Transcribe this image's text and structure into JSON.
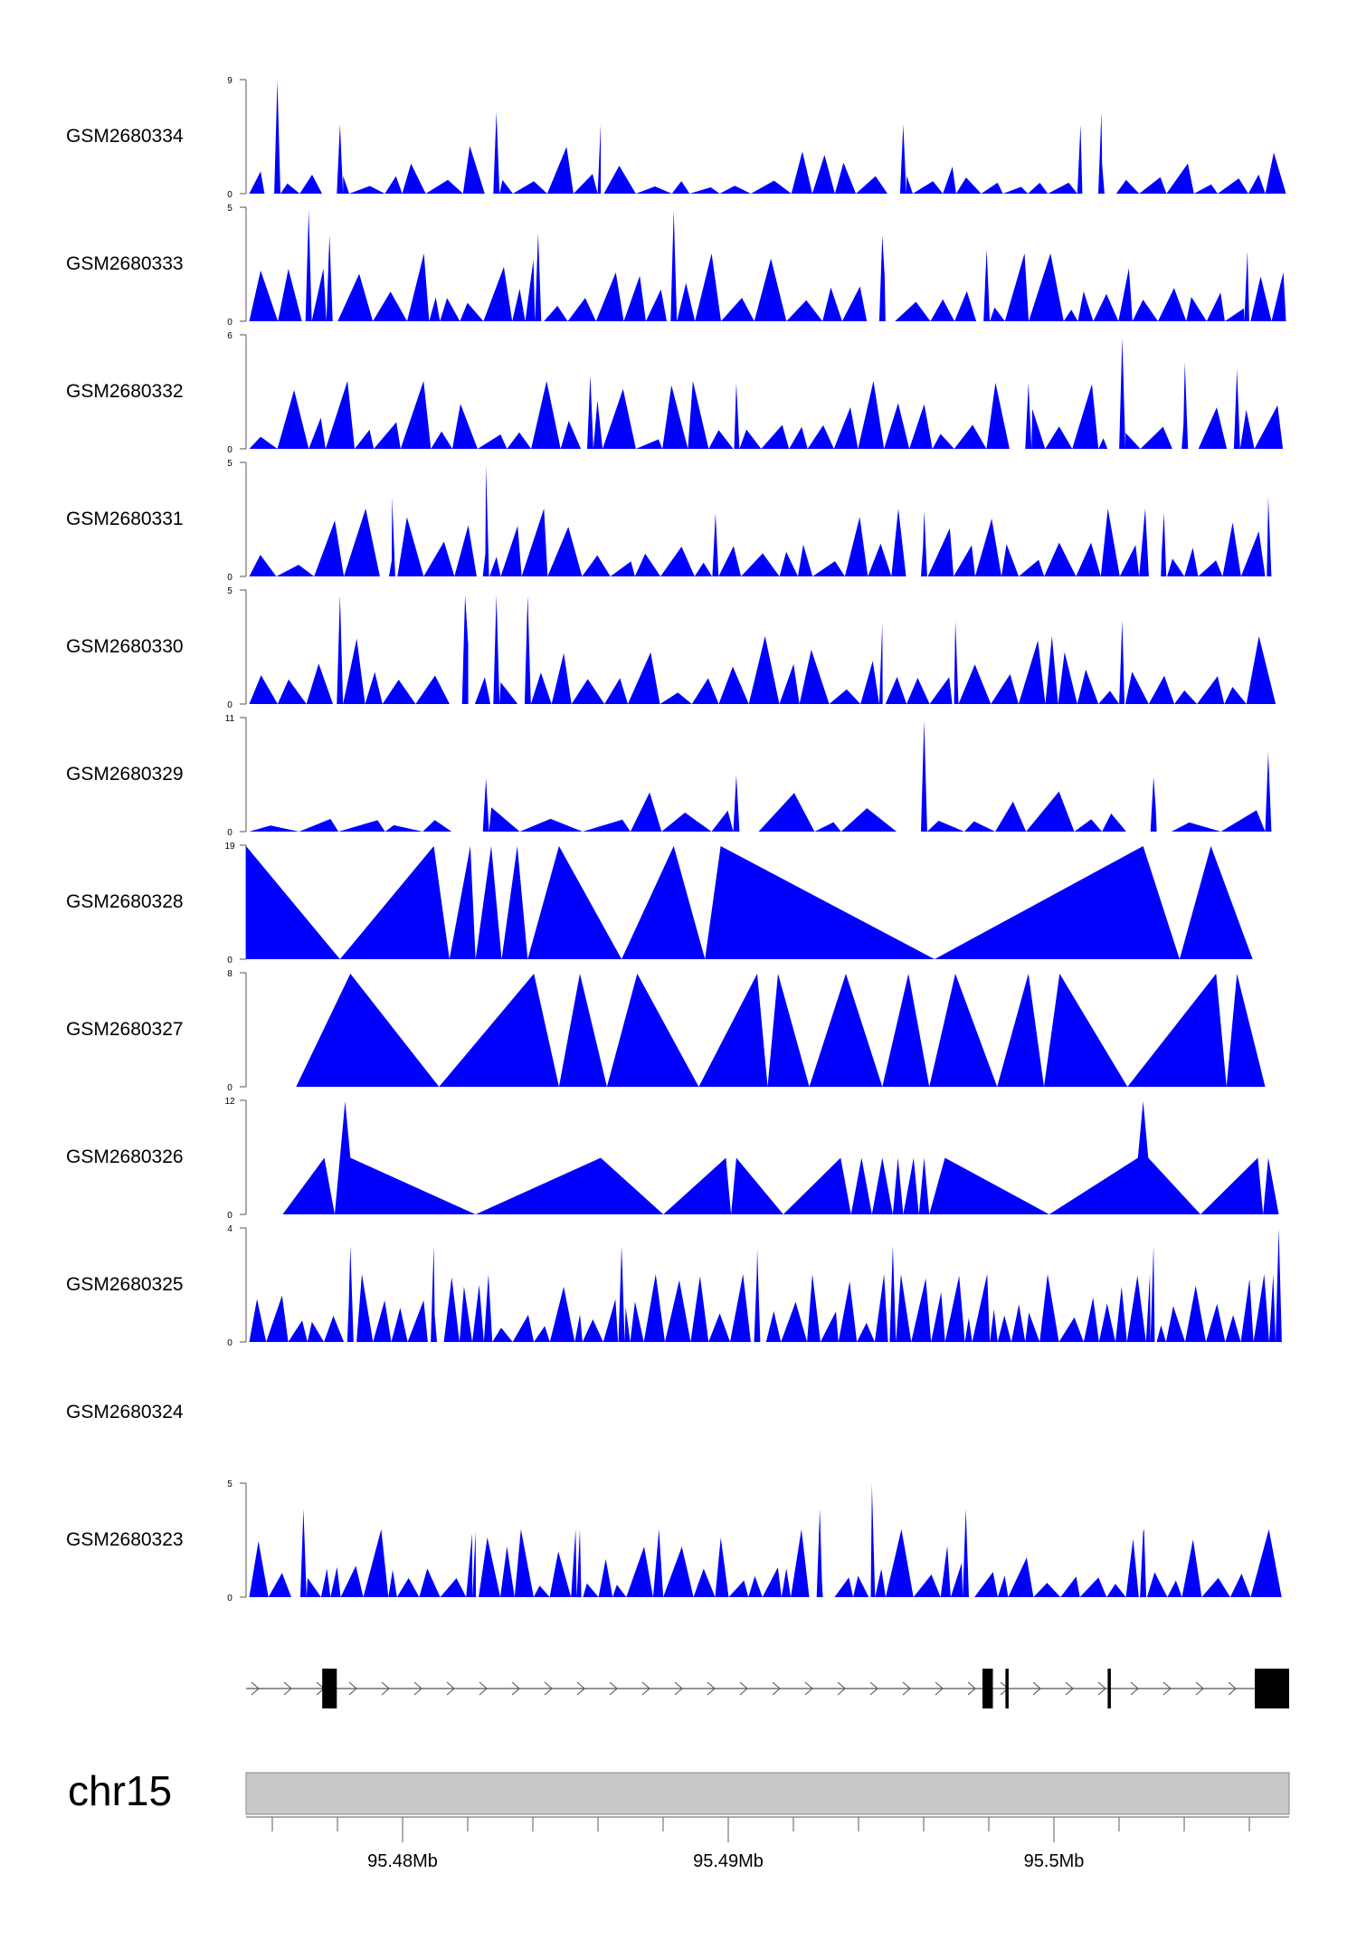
{
  "chart_data": {
    "type": "area",
    "chromosome": "chr15",
    "x_ticks": [
      "95.48Mb",
      "95.49Mb",
      "95.5Mb"
    ],
    "fill_color": "#0000ff",
    "ideogram_color": "#c8c8c8",
    "gene_color": "#000000",
    "tracks": [
      {
        "name": "GSM2680334",
        "ymax": 9,
        "ticks": [
          "9",
          "0"
        ],
        "seed": 334,
        "density": 90,
        "peaks": [
          [
            0.03,
            9
          ],
          [
            0.24,
            6.5
          ],
          [
            0.82,
            6.5
          ],
          [
            0.09,
            5.5
          ],
          [
            0.34,
            5.5
          ],
          [
            0.63,
            5.5
          ],
          [
            0.8,
            5.5
          ]
        ]
      },
      {
        "name": "GSM2680333",
        "ymax": 5,
        "ticks": [
          "5",
          "0"
        ],
        "seed": 333,
        "density": 90,
        "peaks": [
          [
            0.06,
            4.9
          ],
          [
            0.41,
            4.9
          ],
          [
            0.08,
            3.8
          ],
          [
            0.28,
            3.9
          ],
          [
            0.61,
            3.8
          ],
          [
            0.71,
            3.2
          ],
          [
            0.96,
            3.1
          ]
        ]
      },
      {
        "name": "GSM2680332",
        "ymax": 6,
        "ticks": [
          "6",
          "0"
        ],
        "seed": 332,
        "density": 90,
        "peaks": [
          [
            0.84,
            5.9
          ],
          [
            0.9,
            4.6
          ],
          [
            0.95,
            4.2
          ],
          [
            0.33,
            3.9
          ],
          [
            0.47,
            3.5
          ],
          [
            0.75,
            3.5
          ]
        ]
      },
      {
        "name": "GSM2680331",
        "ymax": 5,
        "ticks": [
          "5",
          "0"
        ],
        "seed": 331,
        "density": 92,
        "peaks": [
          [
            0.23,
            4.9
          ],
          [
            0.14,
            3.5
          ],
          [
            0.98,
            3.5
          ],
          [
            0.45,
            2.8
          ],
          [
            0.88,
            2.8
          ],
          [
            0.65,
            2.9
          ]
        ]
      },
      {
        "name": "GSM2680330",
        "ymax": 5,
        "ticks": [
          "5",
          "0"
        ],
        "seed": 330,
        "density": 86,
        "peaks": [
          [
            0.09,
            4.8
          ],
          [
            0.21,
            4.8
          ],
          [
            0.24,
            4.8
          ],
          [
            0.27,
            4.8
          ],
          [
            0.84,
            3.7
          ],
          [
            0.68,
            3.7
          ],
          [
            0.61,
            3.6
          ]
        ]
      },
      {
        "name": "GSM2680329",
        "ymax": 11,
        "ticks": [
          "11",
          "0"
        ],
        "seed": 329,
        "density": 48,
        "peaks": [
          [
            0.65,
            10.8
          ],
          [
            0.98,
            7.7
          ],
          [
            0.23,
            5.2
          ],
          [
            0.47,
            5.5
          ],
          [
            0.87,
            5.3
          ]
        ]
      },
      {
        "name": "GSM2680328",
        "ymax": 19,
        "ticks": [
          "19",
          "0"
        ],
        "fixed": [
          [
            0,
            0
          ],
          [
            0,
            19
          ],
          [
            0.09,
            0
          ],
          [
            0.18,
            19
          ],
          [
            0.195,
            0
          ],
          [
            0.215,
            19
          ],
          [
            0.22,
            0
          ],
          [
            0.235,
            19
          ],
          [
            0.245,
            0
          ],
          [
            0.26,
            19
          ],
          [
            0.27,
            0
          ],
          [
            0.3,
            19
          ],
          [
            0.36,
            0
          ],
          [
            0.41,
            19
          ],
          [
            0.44,
            0
          ],
          [
            0.455,
            19
          ],
          [
            0.66,
            0
          ],
          [
            0.86,
            19
          ],
          [
            0.895,
            0
          ],
          [
            0.925,
            19
          ],
          [
            0.965,
            0
          ]
        ]
      },
      {
        "name": "GSM2680327",
        "ymax": 8,
        "ticks": [
          "8",
          "0"
        ],
        "fixed": [
          [
            0.048,
            0
          ],
          [
            0.1,
            8
          ],
          [
            0.185,
            0
          ],
          [
            0.276,
            8
          ],
          [
            0.3,
            0
          ],
          [
            0.32,
            8
          ],
          [
            0.346,
            0
          ],
          [
            0.375,
            8
          ],
          [
            0.434,
            0
          ],
          [
            0.49,
            8
          ],
          [
            0.5,
            0
          ],
          [
            0.51,
            8
          ],
          [
            0.54,
            0
          ],
          [
            0.575,
            8
          ],
          [
            0.61,
            0
          ],
          [
            0.635,
            8
          ],
          [
            0.655,
            0
          ],
          [
            0.68,
            8
          ],
          [
            0.72,
            0
          ],
          [
            0.75,
            8
          ],
          [
            0.765,
            0
          ],
          [
            0.78,
            8
          ],
          [
            0.845,
            0
          ],
          [
            0.93,
            8
          ],
          [
            0.94,
            0
          ],
          [
            0.95,
            8
          ],
          [
            0.977,
            0
          ]
        ]
      },
      {
        "name": "GSM2680326",
        "ymax": 12,
        "ticks": [
          "12",
          "0"
        ],
        "fixed": [
          [
            0.035,
            0
          ],
          [
            0.075,
            6
          ],
          [
            0.085,
            0
          ],
          [
            0.095,
            12
          ],
          [
            0.1,
            6
          ],
          [
            0.22,
            0
          ],
          [
            0.34,
            6
          ],
          [
            0.4,
            0
          ],
          [
            0.46,
            6
          ],
          [
            0.465,
            0
          ],
          [
            0.47,
            6
          ],
          [
            0.515,
            0
          ],
          [
            0.57,
            6
          ],
          [
            0.58,
            0
          ],
          [
            0.59,
            6
          ],
          [
            0.6,
            0
          ],
          [
            0.61,
            6
          ],
          [
            0.62,
            0
          ],
          [
            0.625,
            6
          ],
          [
            0.63,
            0
          ],
          [
            0.64,
            6
          ],
          [
            0.645,
            0
          ],
          [
            0.65,
            6
          ],
          [
            0.655,
            0
          ],
          [
            0.67,
            6
          ],
          [
            0.77,
            0
          ],
          [
            0.855,
            6
          ],
          [
            0.86,
            12
          ],
          [
            0.865,
            6
          ],
          [
            0.915,
            0
          ],
          [
            0.97,
            6
          ],
          [
            0.975,
            0
          ],
          [
            0.98,
            6
          ],
          [
            0.99,
            0
          ]
        ]
      },
      {
        "name": "GSM2680325",
        "ymax": 4,
        "ticks": [
          "4",
          "0"
        ],
        "seed": 325,
        "density": 130,
        "peaks": [
          [
            0.99,
            4
          ],
          [
            0.1,
            3.4
          ],
          [
            0.18,
            3.4
          ],
          [
            0.36,
            3.4
          ],
          [
            0.49,
            3.3
          ],
          [
            0.62,
            3.4
          ],
          [
            0.87,
            3.4
          ]
        ]
      },
      {
        "name": "GSM2680324",
        "ymax": null,
        "ticks": []
      },
      {
        "name": "GSM2680323",
        "ymax": 5,
        "ticks": [
          "5",
          "0"
        ],
        "seed": 323,
        "density": 110,
        "peaks": [
          [
            0.6,
            5
          ],
          [
            0.055,
            3.9
          ],
          [
            0.55,
            3.9
          ],
          [
            0.69,
            3.9
          ],
          [
            0.32,
            3
          ],
          [
            0.22,
            2.9
          ],
          [
            0.86,
            2.9
          ]
        ]
      }
    ],
    "gene": {
      "start": 0,
      "end": 1,
      "exons": [
        [
          0.073,
          0.087
        ],
        [
          0.706,
          0.716
        ],
        [
          0.728,
          0.731
        ],
        [
          0.826,
          0.829
        ],
        [
          0.967,
          1.0
        ]
      ]
    }
  }
}
